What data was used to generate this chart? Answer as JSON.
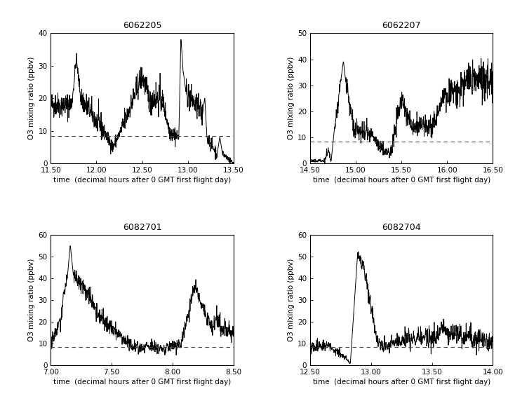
{
  "panels": [
    {
      "title": "6062205",
      "xlim": [
        11.5,
        13.5
      ],
      "ylim": [
        0,
        40
      ],
      "xticks": [
        11.5,
        12.0,
        12.5,
        13.0,
        13.5
      ],
      "yticks": [
        0,
        10,
        20,
        30,
        40
      ],
      "dashed_y": 8.5,
      "seed": 42
    },
    {
      "title": "6062207",
      "xlim": [
        14.5,
        16.5
      ],
      "ylim": [
        0,
        50
      ],
      "xticks": [
        14.5,
        15.0,
        15.5,
        16.0,
        16.5
      ],
      "yticks": [
        0,
        10,
        20,
        30,
        40,
        50
      ],
      "dashed_y": 8.5,
      "seed": 43
    },
    {
      "title": "6082701",
      "xlim": [
        7.0,
        8.5
      ],
      "ylim": [
        0,
        60
      ],
      "xticks": [
        7.0,
        7.5,
        8.0,
        8.5
      ],
      "yticks": [
        0,
        10,
        20,
        30,
        40,
        50,
        60
      ],
      "dashed_y": 8.5,
      "seed": 44
    },
    {
      "title": "6082704",
      "xlim": [
        12.5,
        14.0
      ],
      "ylim": [
        0,
        60
      ],
      "xticks": [
        12.5,
        13.0,
        13.5,
        14.0
      ],
      "yticks": [
        0,
        10,
        20,
        30,
        40,
        50,
        60
      ],
      "dashed_y": 8.5,
      "seed": 45
    }
  ],
  "ylabel": "O3 mixing ratio (ppbv)",
  "xlabel": "time  (decimal hours after 0 GMT first flight day)",
  "title_fontsize": 9,
  "label_fontsize": 7.5,
  "tick_fontsize": 7.5,
  "line_color": "#000000",
  "line_width": 0.7,
  "dashed_color": "#444444",
  "background_color": "#ffffff"
}
